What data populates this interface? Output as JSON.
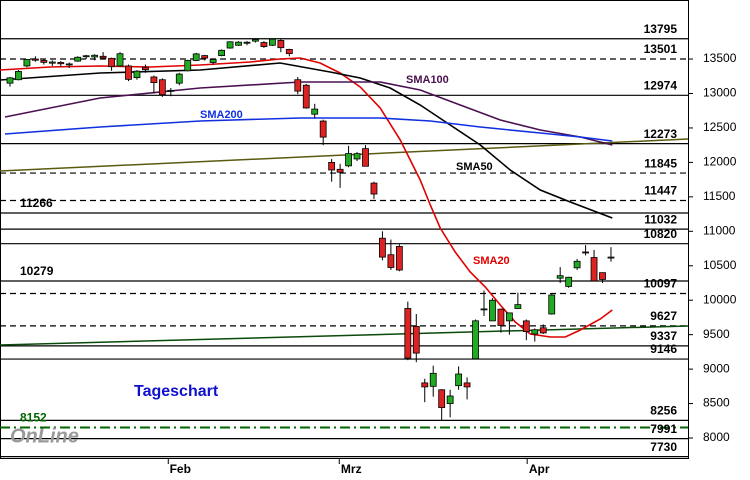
{
  "chart_data": {
    "type": "candlestick",
    "xlim": [
      -1.18,
      80.1
    ],
    "ylim": [
      7710,
      14357
    ],
    "xticks": [
      {
        "value": 18.7,
        "label": "Feb"
      },
      {
        "value": 38.9,
        "label": "Mrz"
      },
      {
        "value": 61.1,
        "label": "Apr"
      }
    ],
    "yticks": [
      8000,
      8500,
      9000,
      9500,
      10000,
      10500,
      11000,
      11500,
      12000,
      12500,
      13000,
      13500
    ],
    "up_color": "#22aa22",
    "down_color": "#dd2222",
    "x": [
      0,
      1,
      2,
      3,
      4,
      5,
      6,
      7,
      8,
      9,
      10,
      11,
      12,
      13,
      14,
      15,
      16,
      17,
      18,
      19,
      20,
      21,
      22,
      23,
      24,
      25,
      26,
      27,
      28,
      29,
      30,
      31,
      32,
      33,
      34,
      35,
      36,
      37,
      38,
      39,
      40,
      41,
      42,
      43,
      44,
      45,
      46,
      47,
      48,
      49,
      50,
      51,
      52,
      53,
      54,
      55,
      56,
      57,
      58,
      59,
      60,
      61,
      62,
      63,
      64,
      65,
      66,
      67,
      68,
      69,
      70,
      71
    ],
    "open": [
      13150,
      13200,
      13400,
      13500,
      13480,
      13440,
      13450,
      13420,
      13470,
      13540,
      13530,
      13540,
      13510,
      13400,
      13400,
      13230,
      13380,
      13240,
      13200,
      13040,
      13150,
      13330,
      13480,
      13550,
      13450,
      13550,
      13660,
      13700,
      13740,
      13760,
      13740,
      13700,
      13770,
      13640,
      13200,
      13120,
      12700,
      12600,
      12000,
      11900,
      11950,
      12050,
      12200,
      11700,
      10900,
      10660,
      10780,
      9880,
      9620,
      8800,
      8750,
      8700,
      8500,
      8760,
      8800,
      9150,
      9870,
      9700,
      9870,
      9700,
      9880,
      9700,
      9510,
      9600,
      9800,
      10320,
      10200,
      10470,
      10700,
      10620,
      10400,
      10620
    ],
    "high": [
      13240,
      13340,
      13500,
      13540,
      13500,
      13480,
      13470,
      13450,
      13540,
      13560,
      13570,
      13600,
      13520,
      13600,
      13420,
      13340,
      13420,
      13260,
      13220,
      13080,
      13300,
      13490,
      13590,
      13560,
      13510,
      13640,
      13760,
      13760,
      13760,
      13800,
      13760,
      13800,
      13790,
      13650,
      13240,
      13140,
      12850,
      12620,
      12050,
      11980,
      12240,
      12150,
      12250,
      11720,
      11000,
      10880,
      10810,
      9980,
      9800,
      8860,
      9050,
      8710,
      8700,
      9040,
      8880,
      9720,
      10140,
      10030,
      9880,
      9820,
      10110,
      9720,
      9590,
      9650,
      10090,
      10480,
      10340,
      10600,
      10800,
      10730,
      10400,
      10770
    ],
    "low": [
      13100,
      13190,
      13380,
      13460,
      13420,
      13400,
      13390,
      13370,
      13460,
      13500,
      13480,
      13500,
      13330,
      13390,
      13180,
      13200,
      13300,
      13000,
      12950,
      12960,
      13120,
      13320,
      13470,
      13480,
      13420,
      13540,
      13650,
      13690,
      13700,
      13740,
      13660,
      13690,
      13600,
      13540,
      12990,
      12780,
      12640,
      12250,
      11720,
      11630,
      11930,
      12020,
      11940,
      11470,
      10580,
      10440,
      10420,
      9130,
      9100,
      8520,
      8600,
      8260,
      8300,
      8700,
      8560,
      9140,
      9770,
      9700,
      9530,
      9500,
      9880,
      9420,
      9400,
      9510,
      9790,
      10250,
      10180,
      10440,
      10650,
      10280,
      10250,
      10560
    ],
    "close": [
      13227,
      13320,
      13495,
      13483,
      13452,
      13457,
      13432,
      13429,
      13526,
      13548,
      13555,
      13515,
      13389,
      13577,
      13205,
      13324,
      13345,
      13158,
      12982,
      13046,
      13282,
      13479,
      13575,
      13514,
      13494,
      13627,
      13750,
      13745,
      13744,
      13784,
      13681,
      13789,
      13665,
      13579,
      13035,
      12790,
      12774,
      12367,
      11890,
      11857,
      12128,
      12127,
      11944,
      11541,
      10625,
      10475,
      10438,
      9161,
      9232,
      8742,
      8939,
      8442,
      8610,
      8929,
      8742,
      9701,
      9874,
      10000,
      9633,
      9816,
      9936,
      9544,
      9571,
      9525,
      10075,
      10356,
      10333,
      10565,
      10696,
      10280,
      10301,
      10626
    ],
    "indicators": [
      {
        "name": "SMA20",
        "color": "#e00000",
        "x": [
          -1.18,
          4.73,
          10.64,
          16.55,
          22.46,
          28.37,
          31.91,
          34.28,
          36.64,
          39.0,
          41.37,
          43.74,
          46.1,
          48.46,
          49.65,
          50.83,
          52.6,
          54.37,
          56.15,
          57.92,
          59.7,
          61.47,
          63.83,
          65.6,
          67.38,
          69.74,
          71.16
        ],
        "values": [
          13341,
          13384,
          13399,
          13384,
          13413,
          13457,
          13501,
          13515,
          13443,
          13297,
          13094,
          12790,
          12326,
          11745,
          11382,
          11048,
          10700,
          10409,
          10192,
          9930,
          9684,
          9509,
          9466,
          9466,
          9567,
          9727,
          9858
        ]
      },
      {
        "name": "SMA50",
        "color": "#000000",
        "x": [
          -1.18,
          10.64,
          22.46,
          31.91,
          37.82,
          41.37,
          44.92,
          48.46,
          52.01,
          55.56,
          59.1,
          62.65,
          66.19,
          71.16
        ],
        "values": [
          13196,
          13297,
          13341,
          13443,
          13312,
          13225,
          13080,
          12833,
          12543,
          12253,
          11890,
          11600,
          11425,
          11193
        ]
      },
      {
        "name": "SMA100",
        "color": "#4b1050",
        "x": [
          -0.59,
          10.64,
          22.46,
          34.28,
          43.74,
          48.46,
          53.19,
          57.92,
          62.65,
          67.38,
          71.16
        ],
        "values": [
          12659,
          12935,
          13080,
          13167,
          13167,
          13051,
          12833,
          12615,
          12470,
          12369,
          12253
        ]
      },
      {
        "name": "SMA200",
        "color": "#1030e0",
        "x": [
          -0.59,
          10.64,
          22.46,
          34.28,
          43.74,
          49.65,
          55.56,
          62.65,
          67.38,
          71.16
        ],
        "values": [
          12412,
          12514,
          12601,
          12644,
          12644,
          12601,
          12514,
          12427,
          12369,
          12311
        ]
      }
    ],
    "trendlines": [
      {
        "color": "#5a5a10",
        "x": [
          -1.18,
          80.1
        ],
        "values": [
          11875,
          12340
        ]
      },
      {
        "color": "#0a4a0a",
        "x": [
          -1.18,
          80.1
        ],
        "values": [
          9350,
          9626
        ]
      }
    ],
    "levels": [
      {
        "value": 13795,
        "side": "right",
        "style": "solid",
        "color": "#000000"
      },
      {
        "value": 13501,
        "side": "right",
        "style": "dashed",
        "color": "#000000"
      },
      {
        "value": 12974,
        "side": "right",
        "style": "solid",
        "color": "#000000"
      },
      {
        "value": 12273,
        "side": "right",
        "style": "solid",
        "color": "#000000"
      },
      {
        "value": 11845,
        "side": "right",
        "style": "dashed",
        "color": "#000000"
      },
      {
        "value": 11447,
        "side": "right",
        "style": "dashed",
        "color": "#000000"
      },
      {
        "value": 11266,
        "side": "left",
        "style": "solid",
        "color": "#000000"
      },
      {
        "value": 11032,
        "side": "right",
        "style": "solid",
        "color": "#000000"
      },
      {
        "value": 10820,
        "side": "right",
        "style": "solid",
        "color": "#000000"
      },
      {
        "value": 10279,
        "side": "left",
        "style": "solid",
        "color": "#000000"
      },
      {
        "value": 10097,
        "side": "right",
        "style": "dashed",
        "color": "#000000"
      },
      {
        "value": 9627,
        "side": "right",
        "style": "dashed",
        "color": "#000000"
      },
      {
        "value": 9337,
        "side": "right",
        "style": "solid",
        "color": "#000000"
      },
      {
        "value": 9146,
        "side": "right",
        "style": "solid",
        "color": "#000000"
      },
      {
        "value": 8256,
        "side": "right",
        "style": "solid",
        "color": "#000000"
      },
      {
        "value": 8152,
        "side": "left",
        "style": "dashdot",
        "color": "#006600"
      },
      {
        "value": 7991,
        "side": "right",
        "style": "solid",
        "color": "#000000"
      },
      {
        "value": 7730,
        "side": "right",
        "style": "solid",
        "color": "#000000"
      }
    ],
    "annotation": "Tageschart",
    "logo": "OnLine"
  }
}
